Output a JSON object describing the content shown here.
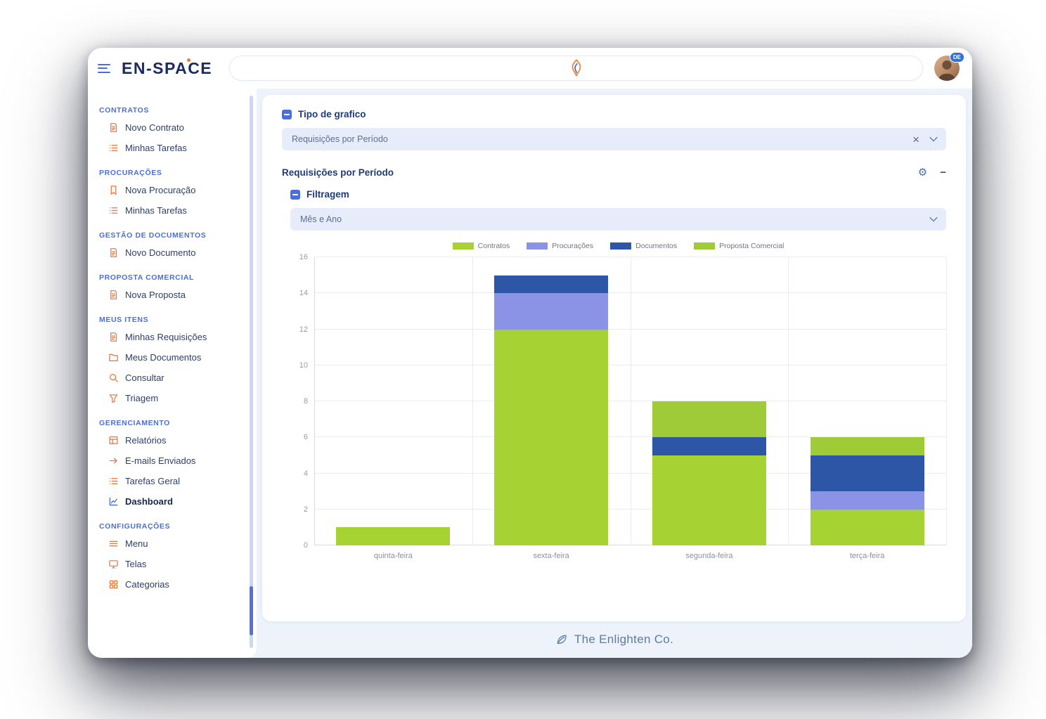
{
  "app": {
    "brand": "EN-SPACE",
    "avatar_badge": "DE",
    "footer": "The Enlighten Co."
  },
  "sidebar": {
    "sections": [
      {
        "label": "CONTRATOS",
        "items": [
          {
            "icon": "document-icon",
            "label": "Novo Contrato"
          },
          {
            "icon": "list-icon",
            "label": "Minhas Tarefas"
          }
        ]
      },
      {
        "label": "PROCURAÇÕES",
        "items": [
          {
            "icon": "bookmark-icon",
            "label": "Nova Procuração"
          },
          {
            "icon": "list-icon",
            "label": "Minhas Tarefas"
          }
        ]
      },
      {
        "label": "GESTÃO DE DOCUMENTOS",
        "items": [
          {
            "icon": "document-icon",
            "label": "Novo Documento"
          }
        ]
      },
      {
        "label": "PROPOSTA COMERCIAL",
        "items": [
          {
            "icon": "document-icon",
            "label": "Nova Proposta"
          }
        ]
      },
      {
        "label": "MEUS ITENS",
        "items": [
          {
            "icon": "document-icon",
            "label": "Minhas Requisições"
          },
          {
            "icon": "folder-icon",
            "label": "Meus Documentos"
          },
          {
            "icon": "search-icon",
            "label": "Consultar"
          },
          {
            "icon": "filter-icon",
            "label": "Triagem"
          }
        ]
      },
      {
        "label": "GERENCIAMENTO",
        "items": [
          {
            "icon": "table-icon",
            "label": "Relatórios"
          },
          {
            "icon": "arrow-right-icon",
            "label": "E-mails Enviados"
          },
          {
            "icon": "list-icon",
            "label": "Tarefas Geral"
          },
          {
            "icon": "chart-icon",
            "label": "Dashboard",
            "active": true
          }
        ]
      },
      {
        "label": "CONFIGURAÇÕES",
        "items": [
          {
            "icon": "menu-icon",
            "label": "Menu"
          },
          {
            "icon": "screen-icon",
            "label": "Telas"
          },
          {
            "icon": "grid-icon",
            "label": "Categorias"
          }
        ]
      }
    ]
  },
  "main": {
    "chart_type_label": "Tipo de grafico",
    "chart_type_value": "Requisições por Período",
    "panel_title": "Requisições por Período",
    "filter_label": "Filtragem",
    "filter_value": "Mês e Ano"
  },
  "chart_data": {
    "type": "bar",
    "stacked": true,
    "title": "Requisições por Período",
    "categories": [
      "quinta-feira",
      "sexta-feira",
      "segunda-feira",
      "terça-feira"
    ],
    "series": [
      {
        "name": "Contratos",
        "color": "#a6d333",
        "values": [
          1,
          12,
          5,
          2
        ]
      },
      {
        "name": "Procurações",
        "color": "#8a93e6",
        "values": [
          0,
          2,
          0,
          1
        ]
      },
      {
        "name": "Documentos",
        "color": "#2e56a6",
        "values": [
          0,
          1,
          1,
          2
        ]
      },
      {
        "name": "Proposta Comercial",
        "color": "#9fcb38",
        "values": [
          0,
          0,
          2,
          1
        ]
      }
    ],
    "ylim": [
      0,
      16
    ],
    "ytick_step": 2,
    "grid": true,
    "legend_position": "top"
  }
}
